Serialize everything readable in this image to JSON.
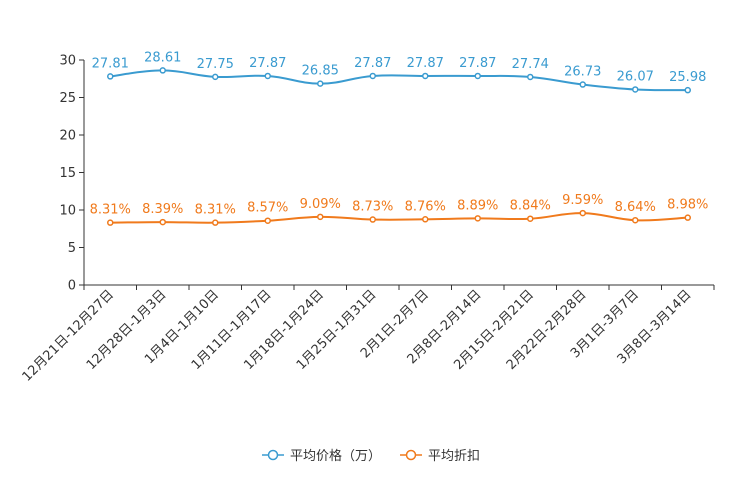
{
  "colors": {
    "series_price": "#3a9bd0",
    "series_discount": "#f07a1c",
    "axis": "#333333",
    "text": "#333333"
  },
  "chart_data": {
    "type": "line",
    "title": "",
    "xlabel": "",
    "ylabel": "",
    "ylim": [
      0,
      30
    ],
    "yticks": [
      0,
      5,
      10,
      15,
      20,
      25,
      30
    ],
    "grid": false,
    "legend_position": "bottom-center",
    "categories": [
      "12月21日-12月27日",
      "12月28日-1月3日",
      "1月4日-1月10日",
      "1月11日-1月17日",
      "1月18日-1月24日",
      "1月25日-1月31日",
      "2月1日-2月7日",
      "2月8日-2月14日",
      "2月15日-2月21日",
      "2月22日-2月28日",
      "3月1日-3月7日",
      "3月8日-3月14日"
    ],
    "series": [
      {
        "name": "平均价格（万）",
        "color_key": "series_price",
        "values": [
          27.81,
          28.61,
          27.75,
          27.87,
          26.85,
          27.87,
          27.87,
          27.87,
          27.74,
          26.73,
          26.07,
          25.98
        ],
        "labels": [
          "27.81",
          "28.61",
          "27.75",
          "27.87",
          "26.85",
          "27.87",
          "27.87",
          "27.87",
          "27.74",
          "26.73",
          "26.07",
          "25.98"
        ]
      },
      {
        "name": "平均折扣",
        "color_key": "series_discount",
        "values": [
          8.31,
          8.39,
          8.31,
          8.57,
          9.09,
          8.73,
          8.76,
          8.89,
          8.84,
          9.59,
          8.64,
          8.98
        ],
        "labels": [
          "8.31%",
          "8.39%",
          "8.31%",
          "8.57%",
          "9.09%",
          "8.73%",
          "8.76%",
          "8.89%",
          "8.84%",
          "9.59%",
          "8.64%",
          "8.98%"
        ]
      }
    ]
  }
}
